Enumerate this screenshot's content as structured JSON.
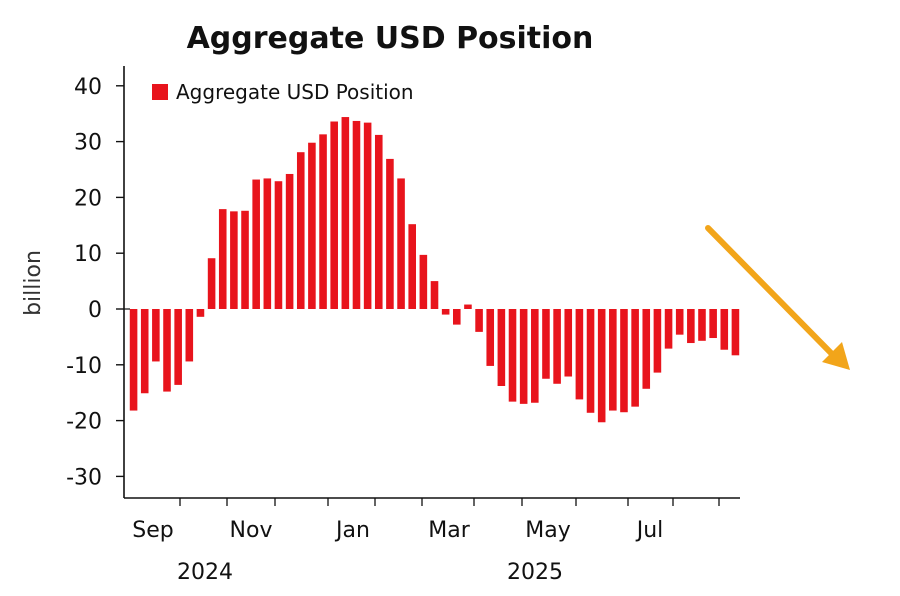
{
  "chart_data": {
    "type": "bar",
    "title": "Aggregate USD Position",
    "ylabel": "billion",
    "xlabel": "",
    "ylim": [
      -30,
      40
    ],
    "y_ticks": [
      40,
      30,
      20,
      10,
      0,
      -10,
      -20,
      -30
    ],
    "month_labels": [
      "Sep",
      "Nov",
      "Jan",
      "Mar",
      "May",
      "Jul"
    ],
    "year_labels": [
      "2024",
      "2025"
    ],
    "legend": {
      "position": "top-left"
    },
    "grid": false,
    "series": [
      {
        "name": "Aggregate USD Position",
        "color": "#e8141c",
        "values": [
          -18.2,
          -15.1,
          -9.4,
          -14.8,
          -13.6,
          -9.4,
          -1.4,
          9.1,
          17.9,
          17.5,
          17.6,
          23.2,
          23.4,
          22.9,
          24.2,
          28.1,
          29.8,
          31.3,
          33.6,
          34.4,
          33.7,
          33.4,
          31.2,
          26.9,
          23.4,
          15.2,
          9.7,
          5.0,
          -1.0,
          -2.8,
          0.8,
          -4.1,
          -10.2,
          -13.8,
          -16.6,
          -17.0,
          -16.8,
          -12.5,
          -13.4,
          -12.1,
          -16.2,
          -18.6,
          -20.3,
          -18.2,
          -18.5,
          -17.5,
          -14.3,
          -11.4,
          -7.1,
          -4.6,
          -6.1,
          -5.7,
          -5.2,
          -7.3,
          -8.3
        ]
      }
    ],
    "annotation": {
      "type": "arrow",
      "color": "#f2a51a",
      "direction": "down-right"
    }
  }
}
